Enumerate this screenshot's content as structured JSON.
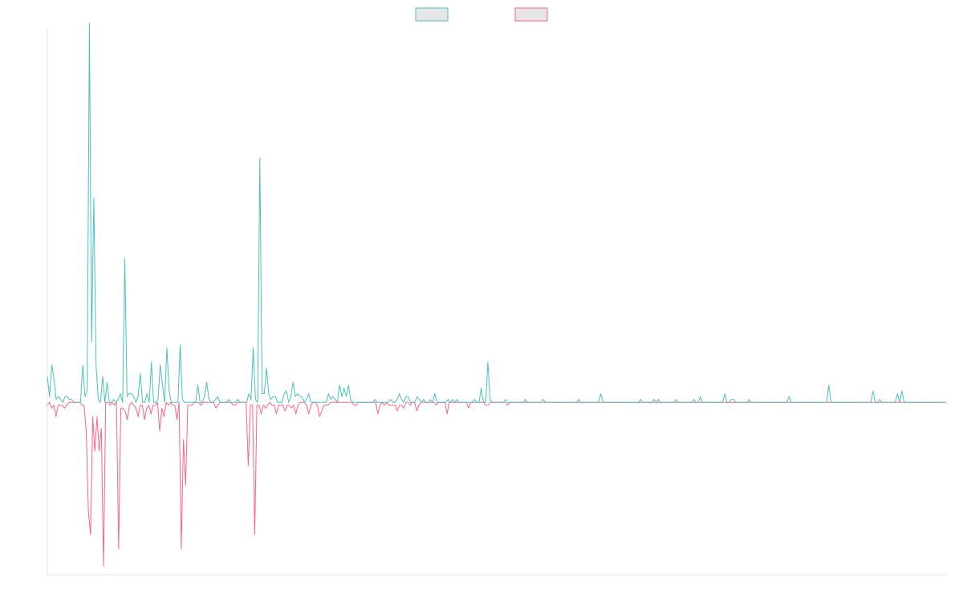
{
  "chart_data": {
    "type": "line",
    "title": "",
    "xlabel": "",
    "ylabel": "",
    "grid": false,
    "legend_placement": "top-center",
    "xlim": [
      0,
      380
    ],
    "ylim": [
      -0.6,
      1.3
    ],
    "series": [
      {
        "color": "#4bc0c0",
        "fill": "#e6e6e6",
        "values": [
          0.09,
          0.02,
          0.13,
          0.08,
          0.01,
          0.02,
          0.01,
          0,
          0.02,
          0.02,
          0.01,
          0.01,
          0,
          0,
          0,
          0,
          0.13,
          0.02,
          0.04,
          1.32,
          0.21,
          0.71,
          0.13,
          0.01,
          0,
          0.09,
          0,
          0.07,
          0,
          0,
          0.01,
          0,
          0.01,
          0.03,
          0,
          0.5,
          0.02,
          0.03,
          0.03,
          0.02,
          0,
          0.02,
          0.1,
          0,
          0,
          0.03,
          0,
          0.14,
          0,
          0,
          0.01,
          0.13,
          0.06,
          0,
          0.19,
          0.04,
          0,
          0,
          0,
          0,
          0.2,
          0.01,
          0,
          0,
          0,
          0,
          0,
          0,
          0.06,
          0,
          0,
          0.02,
          0.07,
          0.01,
          0,
          0,
          0.01,
          0.02,
          0,
          0,
          0,
          0,
          0.01,
          0,
          0,
          0,
          0.01,
          0,
          0,
          0,
          0,
          0.03,
          0.01,
          0.19,
          0.01,
          0,
          0.85,
          0.03,
          0.03,
          0.12,
          0.03,
          0.01,
          0.02,
          0.02,
          0,
          0,
          0,
          0.03,
          0.04,
          0,
          0.02,
          0.07,
          0.02,
          0.03,
          0.02,
          0.02,
          0,
          0.01,
          0.03,
          0,
          0,
          0,
          0,
          0,
          0,
          0,
          0,
          0.03,
          0.01,
          0.02,
          0.01,
          0,
          0.06,
          0.02,
          0.05,
          0.02,
          0.06,
          0.01,
          0,
          0,
          0,
          0,
          0,
          0,
          0,
          0,
          0,
          0,
          0.01,
          0,
          0,
          0,
          0,
          0,
          0,
          0.01,
          0,
          0,
          0.01,
          0.03,
          0.01,
          0,
          0.02,
          0.02,
          0,
          0,
          0,
          0.02,
          0.01,
          0,
          0.01,
          0,
          0,
          0.01,
          0,
          0.03,
          0,
          0,
          0,
          0,
          0,
          0.01,
          0,
          0.01,
          0,
          0.01,
          0,
          0,
          0,
          0,
          0,
          0,
          0,
          0.01,
          0,
          0,
          0.05,
          0,
          0,
          0.14,
          0.01,
          0,
          0,
          0,
          0,
          0,
          0,
          0.01,
          0,
          0,
          0,
          0,
          0,
          0,
          0,
          0,
          0.01,
          0,
          0,
          0,
          0,
          0,
          0,
          0,
          0.01,
          0,
          0,
          0,
          0,
          0,
          0,
          0,
          0,
          0,
          0,
          0,
          0,
          0,
          0,
          0,
          0.01,
          0,
          0,
          0,
          0,
          0,
          0,
          0,
          0,
          0,
          0.03,
          0,
          0,
          0,
          0,
          0,
          0,
          0,
          0,
          0,
          0,
          0,
          0,
          0,
          0,
          0,
          0,
          0,
          0.01,
          0,
          0,
          0,
          0,
          0,
          0.01,
          0,
          0.01,
          0,
          0,
          0,
          0,
          0,
          0,
          0,
          0.01,
          0,
          0,
          0,
          0,
          0,
          0,
          0,
          0.01,
          0,
          0,
          0.02,
          0,
          0,
          0,
          0,
          0,
          0,
          0,
          0,
          0,
          0,
          0.03,
          0,
          0,
          0.01,
          0.01,
          0,
          0,
          0,
          0,
          0,
          0,
          0.01,
          0,
          0,
          0,
          0,
          0,
          0,
          0,
          0,
          0,
          0,
          0,
          0,
          0,
          0,
          0,
          0,
          0,
          0.02,
          0,
          0,
          0,
          0,
          0,
          0,
          0,
          0,
          0,
          0,
          0,
          0,
          0,
          0,
          0,
          0,
          0,
          0.06,
          0,
          0,
          0,
          0,
          0,
          0,
          0,
          0,
          0,
          0,
          0,
          0,
          0,
          0,
          0,
          0,
          0,
          0,
          0,
          0.04,
          0,
          0,
          0.01,
          0,
          0,
          0,
          0,
          0,
          0,
          0,
          0.03,
          0,
          0.04,
          0,
          0,
          0,
          0,
          0,
          0,
          0,
          0,
          0,
          0,
          0,
          0,
          0,
          0,
          0,
          0,
          0,
          0,
          0,
          0
        ],
        "name": ""
      },
      {
        "color": "#ff6384",
        "fill": "#e6e6e6",
        "values": [
          -0.01,
          0,
          -0.02,
          -0.01,
          -0.05,
          -0.01,
          -0.01,
          -0.01,
          -0.02,
          -0.01,
          0,
          0,
          0,
          0,
          0,
          0,
          -0.01,
          -0.01,
          -0.1,
          -0.38,
          -0.46,
          -0.05,
          -0.17,
          -0.05,
          -0.17,
          -0.09,
          -0.57,
          0,
          0,
          -0.01,
          0,
          -0.01,
          0,
          -0.51,
          -0.02,
          -0.02,
          -0.03,
          -0.06,
          -0.01,
          0,
          -0.01,
          -0.02,
          -0.05,
          -0.01,
          -0.01,
          -0.06,
          -0.02,
          -0.01,
          -0.04,
          -0.01,
          -0.01,
          0,
          -0.1,
          -0.02,
          -0.05,
          0,
          -0.01,
          0,
          -0.01,
          -0.01,
          -0.06,
          0,
          -0.51,
          -0.13,
          -0.29,
          -0.01,
          -0.01,
          -0.01,
          0,
          0,
          0,
          -0.01,
          0,
          0,
          0,
          0,
          0,
          0,
          -0.02,
          -0.01,
          0,
          0,
          0,
          0,
          0,
          0,
          -0.01,
          -0.01,
          0,
          0,
          0,
          0,
          0,
          -0.22,
          -0.01,
          -0.01,
          -0.46,
          -0.01,
          -0.01,
          -0.04,
          -0.01,
          -0.02,
          -0.01,
          0,
          -0.01,
          -0.01,
          -0.04,
          -0.01,
          -0.01,
          -0.01,
          -0.03,
          -0.01,
          -0.01,
          -0.02,
          -0.01,
          -0.04,
          -0.01,
          0,
          0,
          0,
          -0.01,
          -0.04,
          -0.01,
          0,
          0,
          -0.01,
          -0.05,
          -0.03,
          -0.01,
          -0.01,
          -0.01,
          0,
          0,
          0,
          0,
          0,
          0,
          0,
          0,
          0,
          0,
          0,
          -0.01,
          -0.01,
          0,
          0,
          0,
          0,
          0,
          0,
          0,
          0,
          0,
          -0.04,
          -0.01,
          0,
          -0.01,
          0,
          -0.01,
          -0.01,
          -0.01,
          -0.01,
          -0.03,
          -0.01,
          -0.01,
          -0.02,
          0,
          0,
          -0.01,
          0,
          0,
          -0.03,
          -0.01,
          0,
          0,
          0,
          0,
          0,
          0,
          0,
          -0.01,
          0,
          0,
          0,
          0,
          -0.04,
          0,
          0,
          0,
          0,
          0,
          0,
          0,
          0,
          0,
          -0.02,
          0,
          0,
          0,
          0,
          0,
          0,
          0,
          -0.01,
          -0.01,
          0,
          0,
          0,
          0,
          0,
          0,
          0,
          0,
          -0.01,
          0,
          0,
          0,
          0,
          0,
          0,
          0,
          0,
          0,
          0,
          0,
          0,
          0,
          0,
          0,
          0,
          0,
          0,
          0,
          0,
          0,
          0,
          0,
          0,
          0,
          0,
          0,
          0,
          0,
          0,
          0,
          0,
          0,
          0,
          0,
          0,
          0,
          0,
          0,
          0,
          0,
          0,
          0,
          0,
          0,
          0,
          0,
          0,
          0,
          0,
          0,
          0,
          0,
          0,
          0,
          0,
          0,
          0,
          0,
          0,
          0,
          0,
          0,
          0,
          0,
          0,
          0,
          0,
          0,
          0,
          0,
          0,
          0,
          0,
          0,
          0,
          0,
          0,
          0,
          0,
          0,
          0,
          0,
          0,
          0,
          0,
          0,
          0,
          0,
          0,
          0,
          0,
          0,
          0,
          0,
          0,
          0,
          0,
          0,
          0,
          0,
          0,
          0,
          0,
          0,
          0,
          0,
          0,
          0,
          0,
          0,
          0,
          0,
          0,
          0,
          0,
          0,
          0,
          0,
          0,
          0,
          0,
          0,
          0,
          0,
          0,
          0,
          0,
          0,
          0,
          0,
          0,
          0,
          0,
          0,
          0,
          0,
          0,
          0,
          0,
          0,
          0,
          0,
          0,
          0,
          0,
          0,
          0,
          0,
          0,
          0,
          0,
          0,
          0,
          0,
          0,
          0,
          0,
          0,
          0,
          0,
          0,
          0,
          0,
          0,
          0,
          0,
          0,
          0,
          0,
          0,
          0,
          0,
          0,
          0,
          0,
          0,
          0,
          0,
          0,
          0,
          0,
          0,
          0,
          0,
          0,
          0,
          0,
          0,
          0,
          0,
          0,
          0,
          0,
          0,
          0,
          0,
          0,
          0,
          0,
          0,
          0,
          0
        ],
        "name": ""
      }
    ]
  }
}
